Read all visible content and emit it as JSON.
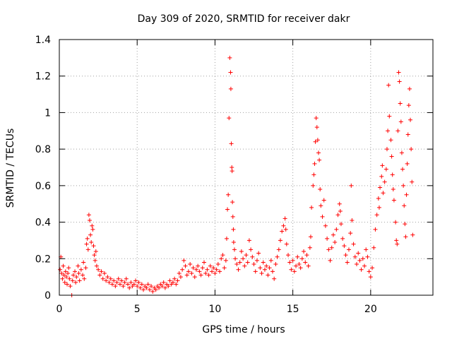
{
  "chart_data": {
    "type": "scatter",
    "title": "Day 309 of 2020, SRMTID for receiver dakr",
    "xlabel": "GPS time / hours",
    "ylabel": "SRMTID / TECUs",
    "xlim": [
      0,
      24
    ],
    "ylim": [
      0,
      1.4
    ],
    "xticks": [
      0,
      5,
      10,
      15,
      20
    ],
    "xtick_labels": [
      "0",
      "5",
      "10",
      "15",
      "20"
    ],
    "yticks": [
      0,
      0.2,
      0.4,
      0.6,
      0.8,
      1,
      1.2,
      1.4
    ],
    "ytick_labels": [
      "0",
      "0.2",
      "0.4",
      "0.6",
      "0.8",
      "1",
      "1.2",
      "1.4"
    ],
    "grid": true,
    "marker": "+",
    "color": "#ff0000",
    "series": [
      {
        "name": "SRMTID",
        "points": [
          [
            0.05,
            0.14
          ],
          [
            0.1,
            0.21
          ],
          [
            0.15,
            0.12
          ],
          [
            0.2,
            0.09
          ],
          [
            0.25,
            0.16
          ],
          [
            0.3,
            0.11
          ],
          [
            0.35,
            0.07
          ],
          [
            0.4,
            0.13
          ],
          [
            0.45,
            0.1
          ],
          [
            0.5,
            0.06
          ],
          [
            0.55,
            0.12
          ],
          [
            0.6,
            0.15
          ],
          [
            0.65,
            0.09
          ],
          [
            0.7,
            0.05
          ],
          [
            0.8,
            0.0
          ],
          [
            0.85,
            0.08
          ],
          [
            0.9,
            0.11
          ],
          [
            1.0,
            0.13
          ],
          [
            1.05,
            0.07
          ],
          [
            1.1,
            0.1
          ],
          [
            1.2,
            0.16
          ],
          [
            1.25,
            0.12
          ],
          [
            1.3,
            0.08
          ],
          [
            1.4,
            0.14
          ],
          [
            1.5,
            0.11
          ],
          [
            1.55,
            0.18
          ],
          [
            1.6,
            0.09
          ],
          [
            1.7,
            0.15
          ],
          [
            1.75,
            0.28
          ],
          [
            1.8,
            0.31
          ],
          [
            1.85,
            0.25
          ],
          [
            1.9,
            0.44
          ],
          [
            1.95,
            0.41
          ],
          [
            2.0,
            0.33
          ],
          [
            2.05,
            0.29
          ],
          [
            2.1,
            0.38
          ],
          [
            2.15,
            0.36
          ],
          [
            2.2,
            0.27
          ],
          [
            2.25,
            0.22
          ],
          [
            2.3,
            0.19
          ],
          [
            2.35,
            0.24
          ],
          [
            2.4,
            0.16
          ],
          [
            2.5,
            0.14
          ],
          [
            2.6,
            0.11
          ],
          [
            2.7,
            0.13
          ],
          [
            2.8,
            0.09
          ],
          [
            2.9,
            0.12
          ],
          [
            3.0,
            0.08
          ],
          [
            3.1,
            0.1
          ],
          [
            3.2,
            0.07
          ],
          [
            3.3,
            0.09
          ],
          [
            3.4,
            0.06
          ],
          [
            3.5,
            0.08
          ],
          [
            3.6,
            0.05
          ],
          [
            3.7,
            0.07
          ],
          [
            3.8,
            0.09
          ],
          [
            3.9,
            0.06
          ],
          [
            4.0,
            0.08
          ],
          [
            4.1,
            0.05
          ],
          [
            4.2,
            0.07
          ],
          [
            4.3,
            0.09
          ],
          [
            4.4,
            0.06
          ],
          [
            4.5,
            0.04
          ],
          [
            4.6,
            0.07
          ],
          [
            4.7,
            0.05
          ],
          [
            4.8,
            0.06
          ],
          [
            4.9,
            0.08
          ],
          [
            5.0,
            0.05
          ],
          [
            5.1,
            0.07
          ],
          [
            5.2,
            0.04
          ],
          [
            5.3,
            0.06
          ],
          [
            5.4,
            0.03
          ],
          [
            5.5,
            0.05
          ],
          [
            5.6,
            0.04
          ],
          [
            5.7,
            0.06
          ],
          [
            5.8,
            0.03
          ],
          [
            5.9,
            0.05
          ],
          [
            6.0,
            0.02
          ],
          [
            6.1,
            0.04
          ],
          [
            6.2,
            0.03
          ],
          [
            6.3,
            0.05
          ],
          [
            6.4,
            0.04
          ],
          [
            6.5,
            0.06
          ],
          [
            6.6,
            0.05
          ],
          [
            6.7,
            0.07
          ],
          [
            6.8,
            0.04
          ],
          [
            6.9,
            0.06
          ],
          [
            7.0,
            0.05
          ],
          [
            7.1,
            0.08
          ],
          [
            7.2,
            0.06
          ],
          [
            7.3,
            0.07
          ],
          [
            7.4,
            0.09
          ],
          [
            7.5,
            0.06
          ],
          [
            7.6,
            0.08
          ],
          [
            7.7,
            0.12
          ],
          [
            7.8,
            0.1
          ],
          [
            7.9,
            0.14
          ],
          [
            8.0,
            0.19
          ],
          [
            8.1,
            0.16
          ],
          [
            8.2,
            0.11
          ],
          [
            8.3,
            0.13
          ],
          [
            8.4,
            0.17
          ],
          [
            8.5,
            0.12
          ],
          [
            8.6,
            0.15
          ],
          [
            8.7,
            0.1
          ],
          [
            8.8,
            0.14
          ],
          [
            8.9,
            0.16
          ],
          [
            9.0,
            0.13
          ],
          [
            9.1,
            0.11
          ],
          [
            9.2,
            0.15
          ],
          [
            9.3,
            0.18
          ],
          [
            9.4,
            0.12
          ],
          [
            9.5,
            0.14
          ],
          [
            9.6,
            0.11
          ],
          [
            9.7,
            0.16
          ],
          [
            9.8,
            0.13
          ],
          [
            9.9,
            0.15
          ],
          [
            10.0,
            0.12
          ],
          [
            10.1,
            0.14
          ],
          [
            10.2,
            0.17
          ],
          [
            10.3,
            0.13
          ],
          [
            10.4,
            0.2
          ],
          [
            10.5,
            0.22
          ],
          [
            10.6,
            0.15
          ],
          [
            10.7,
            0.19
          ],
          [
            10.75,
            0.31
          ],
          [
            10.8,
            0.47
          ],
          [
            10.85,
            0.55
          ],
          [
            10.9,
            0.97
          ],
          [
            10.95,
            1.3
          ],
          [
            11.0,
            1.22
          ],
          [
            11.02,
            1.13
          ],
          [
            11.05,
            0.83
          ],
          [
            11.08,
            0.7
          ],
          [
            11.1,
            0.68
          ],
          [
            11.12,
            0.51
          ],
          [
            11.15,
            0.43
          ],
          [
            11.18,
            0.36
          ],
          [
            11.2,
            0.29
          ],
          [
            11.25,
            0.25
          ],
          [
            11.3,
            0.2
          ],
          [
            11.4,
            0.17
          ],
          [
            11.5,
            0.14
          ],
          [
            11.6,
            0.18
          ],
          [
            11.7,
            0.24
          ],
          [
            11.8,
            0.2
          ],
          [
            11.9,
            0.16
          ],
          [
            12.0,
            0.22
          ],
          [
            12.1,
            0.18
          ],
          [
            12.2,
            0.3
          ],
          [
            12.3,
            0.25
          ],
          [
            12.4,
            0.21
          ],
          [
            12.5,
            0.17
          ],
          [
            12.6,
            0.13
          ],
          [
            12.7,
            0.19
          ],
          [
            12.8,
            0.23
          ],
          [
            12.9,
            0.15
          ],
          [
            13.0,
            0.12
          ],
          [
            13.1,
            0.18
          ],
          [
            13.2,
            0.14
          ],
          [
            13.3,
            0.16
          ],
          [
            13.4,
            0.11
          ],
          [
            13.5,
            0.15
          ],
          [
            13.6,
            0.19
          ],
          [
            13.7,
            0.13
          ],
          [
            13.8,
            0.09
          ],
          [
            13.9,
            0.17
          ],
          [
            14.0,
            0.21
          ],
          [
            14.1,
            0.25
          ],
          [
            14.2,
            0.3
          ],
          [
            14.3,
            0.35
          ],
          [
            14.4,
            0.38
          ],
          [
            14.5,
            0.42
          ],
          [
            14.55,
            0.36
          ],
          [
            14.6,
            0.28
          ],
          [
            14.7,
            0.22
          ],
          [
            14.8,
            0.18
          ],
          [
            14.9,
            0.14
          ],
          [
            15.0,
            0.19
          ],
          [
            15.1,
            0.13
          ],
          [
            15.2,
            0.16
          ],
          [
            15.3,
            0.21
          ],
          [
            15.4,
            0.17
          ],
          [
            15.5,
            0.15
          ],
          [
            15.6,
            0.2
          ],
          [
            15.7,
            0.24
          ],
          [
            15.8,
            0.18
          ],
          [
            15.9,
            0.22
          ],
          [
            16.0,
            0.16
          ],
          [
            16.1,
            0.26
          ],
          [
            16.15,
            0.32
          ],
          [
            16.2,
            0.48
          ],
          [
            16.3,
            0.6
          ],
          [
            16.35,
            0.66
          ],
          [
            16.4,
            0.72
          ],
          [
            16.45,
            0.84
          ],
          [
            16.5,
            0.97
          ],
          [
            16.55,
            0.92
          ],
          [
            16.6,
            0.85
          ],
          [
            16.65,
            0.78
          ],
          [
            16.7,
            0.74
          ],
          [
            16.75,
            0.58
          ],
          [
            16.8,
            0.49
          ],
          [
            16.9,
            0.43
          ],
          [
            17.0,
            0.52
          ],
          [
            17.1,
            0.38
          ],
          [
            17.2,
            0.31
          ],
          [
            17.3,
            0.25
          ],
          [
            17.4,
            0.19
          ],
          [
            17.5,
            0.26
          ],
          [
            17.6,
            0.33
          ],
          [
            17.7,
            0.29
          ],
          [
            17.8,
            0.36
          ],
          [
            17.9,
            0.44
          ],
          [
            18.0,
            0.5
          ],
          [
            18.05,
            0.46
          ],
          [
            18.1,
            0.39
          ],
          [
            18.2,
            0.31
          ],
          [
            18.3,
            0.27
          ],
          [
            18.4,
            0.22
          ],
          [
            18.5,
            0.18
          ],
          [
            18.6,
            0.25
          ],
          [
            18.7,
            0.34
          ],
          [
            18.75,
            0.6
          ],
          [
            18.8,
            0.41
          ],
          [
            18.9,
            0.28
          ],
          [
            19.0,
            0.21
          ],
          [
            19.1,
            0.17
          ],
          [
            19.2,
            0.23
          ],
          [
            19.3,
            0.19
          ],
          [
            19.4,
            0.14
          ],
          [
            19.5,
            0.2
          ],
          [
            19.6,
            0.16
          ],
          [
            19.7,
            0.25
          ],
          [
            19.8,
            0.21
          ],
          [
            19.9,
            0.13
          ],
          [
            20.0,
            0.1
          ],
          [
            20.1,
            0.15
          ],
          [
            20.2,
            0.26
          ],
          [
            20.3,
            0.36
          ],
          [
            20.4,
            0.44
          ],
          [
            20.5,
            0.53
          ],
          [
            20.55,
            0.48
          ],
          [
            20.6,
            0.59
          ],
          [
            20.7,
            0.65
          ],
          [
            20.75,
            0.71
          ],
          [
            20.8,
            0.56
          ],
          [
            20.9,
            0.62
          ],
          [
            21.0,
            0.69
          ],
          [
            21.05,
            0.8
          ],
          [
            21.1,
            0.9
          ],
          [
            21.15,
            1.15
          ],
          [
            21.2,
            0.98
          ],
          [
            21.3,
            0.85
          ],
          [
            21.35,
            0.76
          ],
          [
            21.4,
            0.66
          ],
          [
            21.45,
            0.58
          ],
          [
            21.5,
            0.52
          ],
          [
            21.6,
            0.4
          ],
          [
            21.65,
            0.3
          ],
          [
            21.7,
            0.28
          ],
          [
            21.75,
            0.9
          ],
          [
            21.8,
            1.22
          ],
          [
            21.85,
            1.17
          ],
          [
            21.9,
            1.05
          ],
          [
            21.95,
            0.95
          ],
          [
            22.0,
            0.78
          ],
          [
            22.05,
            0.69
          ],
          [
            22.1,
            0.6
          ],
          [
            22.15,
            0.49
          ],
          [
            22.2,
            0.39
          ],
          [
            22.25,
            0.32
          ],
          [
            22.3,
            0.55
          ],
          [
            22.35,
            0.72
          ],
          [
            22.4,
            0.88
          ],
          [
            22.45,
            1.04
          ],
          [
            22.5,
            1.13
          ],
          [
            22.55,
            0.96
          ],
          [
            22.6,
            0.8
          ],
          [
            22.65,
            0.62
          ],
          [
            22.7,
            0.33
          ]
        ]
      }
    ]
  }
}
